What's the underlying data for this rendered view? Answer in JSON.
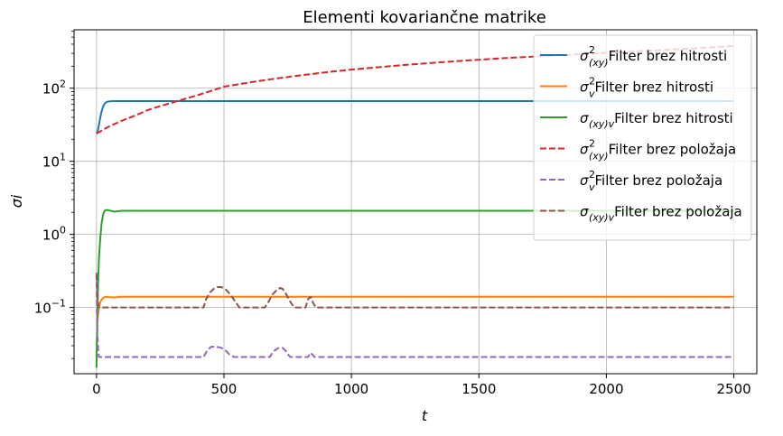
{
  "chart_data": {
    "type": "line",
    "title": "Elementi kovariančne matrike",
    "xlabel": "t",
    "ylabel": "σi",
    "yscale": "log",
    "xlim": [
      -88,
      2590
    ],
    "ylim": [
      0.0124,
      630
    ],
    "xticks": [
      0,
      500,
      1000,
      1500,
      2000,
      2500
    ],
    "xtick_labels": [
      "0",
      "500",
      "1000",
      "1500",
      "2000",
      "2500"
    ],
    "yticks": [
      0.1,
      1,
      10,
      100
    ],
    "ytick_labels": [
      {
        "base": "10",
        "exp": "−1"
      },
      {
        "base": "10",
        "exp": "0"
      },
      {
        "base": "10",
        "exp": "1"
      },
      {
        "base": "10",
        "exp": "2"
      }
    ],
    "grid": true,
    "legend_position": "top-right",
    "series": [
      {
        "sym": "σ",
        "sup": "2",
        "sub": "(xy)",
        "label": "Filter brez hitrosti",
        "color": "#1f77b4",
        "dash": "solid",
        "points": [
          [
            0,
            24
          ],
          [
            5,
            26
          ],
          [
            10,
            32
          ],
          [
            15,
            40
          ],
          [
            20,
            48
          ],
          [
            25,
            55
          ],
          [
            30,
            60
          ],
          [
            35,
            63
          ],
          [
            40,
            65
          ],
          [
            50,
            66
          ],
          [
            60,
            66.5
          ],
          [
            100,
            66.5
          ],
          [
            2500,
            66.5
          ]
        ]
      },
      {
        "sym": "σ",
        "sup": "2",
        "sub": "v",
        "label": "Filter brez hitrosti",
        "color": "#ff7f0e",
        "dash": "solid",
        "points": [
          [
            0,
            0.02
          ],
          [
            3,
            0.06
          ],
          [
            6,
            0.08
          ],
          [
            10,
            0.1
          ],
          [
            15,
            0.118
          ],
          [
            20,
            0.128
          ],
          [
            25,
            0.134
          ],
          [
            30,
            0.138
          ],
          [
            40,
            0.14
          ],
          [
            50,
            0.138
          ],
          [
            70,
            0.137
          ],
          [
            100,
            0.14
          ],
          [
            2500,
            0.14
          ]
        ]
      },
      {
        "sym": "σ",
        "sup": "",
        "sub": "(xy)v",
        "label": "Filter brez hitrosti",
        "color": "#2ca02c",
        "dash": "solid",
        "points": [
          [
            0,
            0.015
          ],
          [
            3,
            0.06
          ],
          [
            6,
            0.2
          ],
          [
            10,
            0.5
          ],
          [
            15,
            0.9
          ],
          [
            20,
            1.4
          ],
          [
            25,
            1.8
          ],
          [
            30,
            2.05
          ],
          [
            35,
            2.15
          ],
          [
            45,
            2.15
          ],
          [
            55,
            2.1
          ],
          [
            70,
            2.05
          ],
          [
            100,
            2.1
          ],
          [
            2500,
            2.1
          ]
        ]
      },
      {
        "sym": "σ",
        "sup": "2",
        "sub": "(xy)",
        "label": "Filter brez položaja",
        "color": "#d62728",
        "dash": "dashed",
        "points": [
          [
            0,
            24
          ],
          [
            50,
            30
          ],
          [
            100,
            36
          ],
          [
            150,
            42
          ],
          [
            200,
            50
          ],
          [
            250,
            57
          ],
          [
            300,
            64
          ],
          [
            350,
            72
          ],
          [
            400,
            81
          ],
          [
            450,
            92
          ],
          [
            500,
            105
          ],
          [
            600,
            120
          ],
          [
            700,
            135
          ],
          [
            800,
            150
          ],
          [
            900,
            165
          ],
          [
            1000,
            180
          ],
          [
            1200,
            207
          ],
          [
            1400,
            233
          ],
          [
            1600,
            258
          ],
          [
            1800,
            280
          ],
          [
            2000,
            305
          ],
          [
            2200,
            330
          ],
          [
            2400,
            360
          ],
          [
            2500,
            380
          ]
        ]
      },
      {
        "sym": "σ",
        "sup": "2",
        "sub": "v",
        "label": "Filter brez položaja",
        "color": "#9467bd",
        "dash": "dashed",
        "points": [
          [
            0,
            0.3
          ],
          [
            2,
            0.08
          ],
          [
            4,
            0.04
          ],
          [
            7,
            0.025
          ],
          [
            10,
            0.021
          ],
          [
            420,
            0.021
          ],
          [
            435,
            0.026
          ],
          [
            450,
            0.029
          ],
          [
            470,
            0.029
          ],
          [
            490,
            0.028
          ],
          [
            505,
            0.026
          ],
          [
            520,
            0.023
          ],
          [
            540,
            0.021
          ],
          [
            680,
            0.021
          ],
          [
            690,
            0.024
          ],
          [
            700,
            0.026
          ],
          [
            715,
            0.028
          ],
          [
            730,
            0.028
          ],
          [
            740,
            0.026
          ],
          [
            750,
            0.023
          ],
          [
            760,
            0.021
          ],
          [
            830,
            0.021
          ],
          [
            840,
            0.024
          ],
          [
            850,
            0.022
          ],
          [
            855,
            0.021
          ],
          [
            2500,
            0.021
          ]
        ]
      },
      {
        "sym": "σ",
        "sup": "",
        "sub": "(xy)v",
        "label": "Filter brez položaja",
        "color": "#8c564b",
        "dash": "dashed",
        "points": [
          [
            0,
            0.28
          ],
          [
            2,
            0.2
          ],
          [
            4,
            0.14
          ],
          [
            7,
            0.11
          ],
          [
            10,
            0.1
          ],
          [
            420,
            0.1
          ],
          [
            430,
            0.13
          ],
          [
            445,
            0.16
          ],
          [
            460,
            0.18
          ],
          [
            475,
            0.19
          ],
          [
            490,
            0.19
          ],
          [
            505,
            0.18
          ],
          [
            525,
            0.15
          ],
          [
            545,
            0.12
          ],
          [
            560,
            0.1
          ],
          [
            660,
            0.1
          ],
          [
            675,
            0.12
          ],
          [
            690,
            0.15
          ],
          [
            705,
            0.17
          ],
          [
            720,
            0.185
          ],
          [
            730,
            0.18
          ],
          [
            745,
            0.15
          ],
          [
            760,
            0.12
          ],
          [
            775,
            0.1
          ],
          [
            820,
            0.1
          ],
          [
            830,
            0.13
          ],
          [
            840,
            0.14
          ],
          [
            850,
            0.115
          ],
          [
            860,
            0.1
          ],
          [
            2500,
            0.1
          ]
        ]
      }
    ]
  }
}
